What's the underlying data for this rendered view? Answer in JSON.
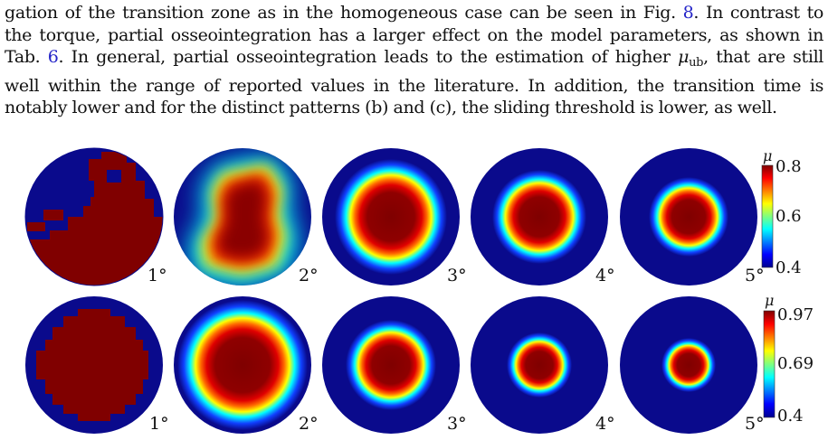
{
  "paragraph": {
    "line1_pre": "gation of the transition zone as in the homogeneous case can be seen in Fig.",
    "line1_ref": "8",
    "line1_post": ". In contrast to",
    "line2": "the torque, partial osseointegration has a larger effect on the model parameters, as shown in",
    "line3_pre": "Tab.",
    "line3_ref": "6",
    "line3_mid": ". In general, partial osseointegration leads to the estimation of higher",
    "line3_mu": "μ",
    "line3_sub": "ub",
    "line3_post": ", that are still",
    "line4": "well within the range of reported values in the literature. In addition, the transition time is",
    "line5": "notably lower and for the distinct patterns (b) and (c), the sliding threshold is lower, as well."
  },
  "figure": {
    "rows": [
      {
        "angles": [
          "1°",
          "2°",
          "3°",
          "4°",
          "5°"
        ],
        "colorbar": {
          "symbol": "μ",
          "max_label": "0.8",
          "mid_label": "0.6",
          "min_label": "0.4"
        }
      },
      {
        "angles": [
          "1°",
          "2°",
          "3°",
          "4°",
          "5°"
        ],
        "colorbar": {
          "symbol": "μ",
          "max_label": "0.97",
          "mid_label": "0.69",
          "min_label": "0.4"
        }
      }
    ]
  },
  "colors": {
    "background_blue": "#0a0a8c",
    "peak_red": "#7f0000",
    "link_blue": "#2424c8"
  }
}
